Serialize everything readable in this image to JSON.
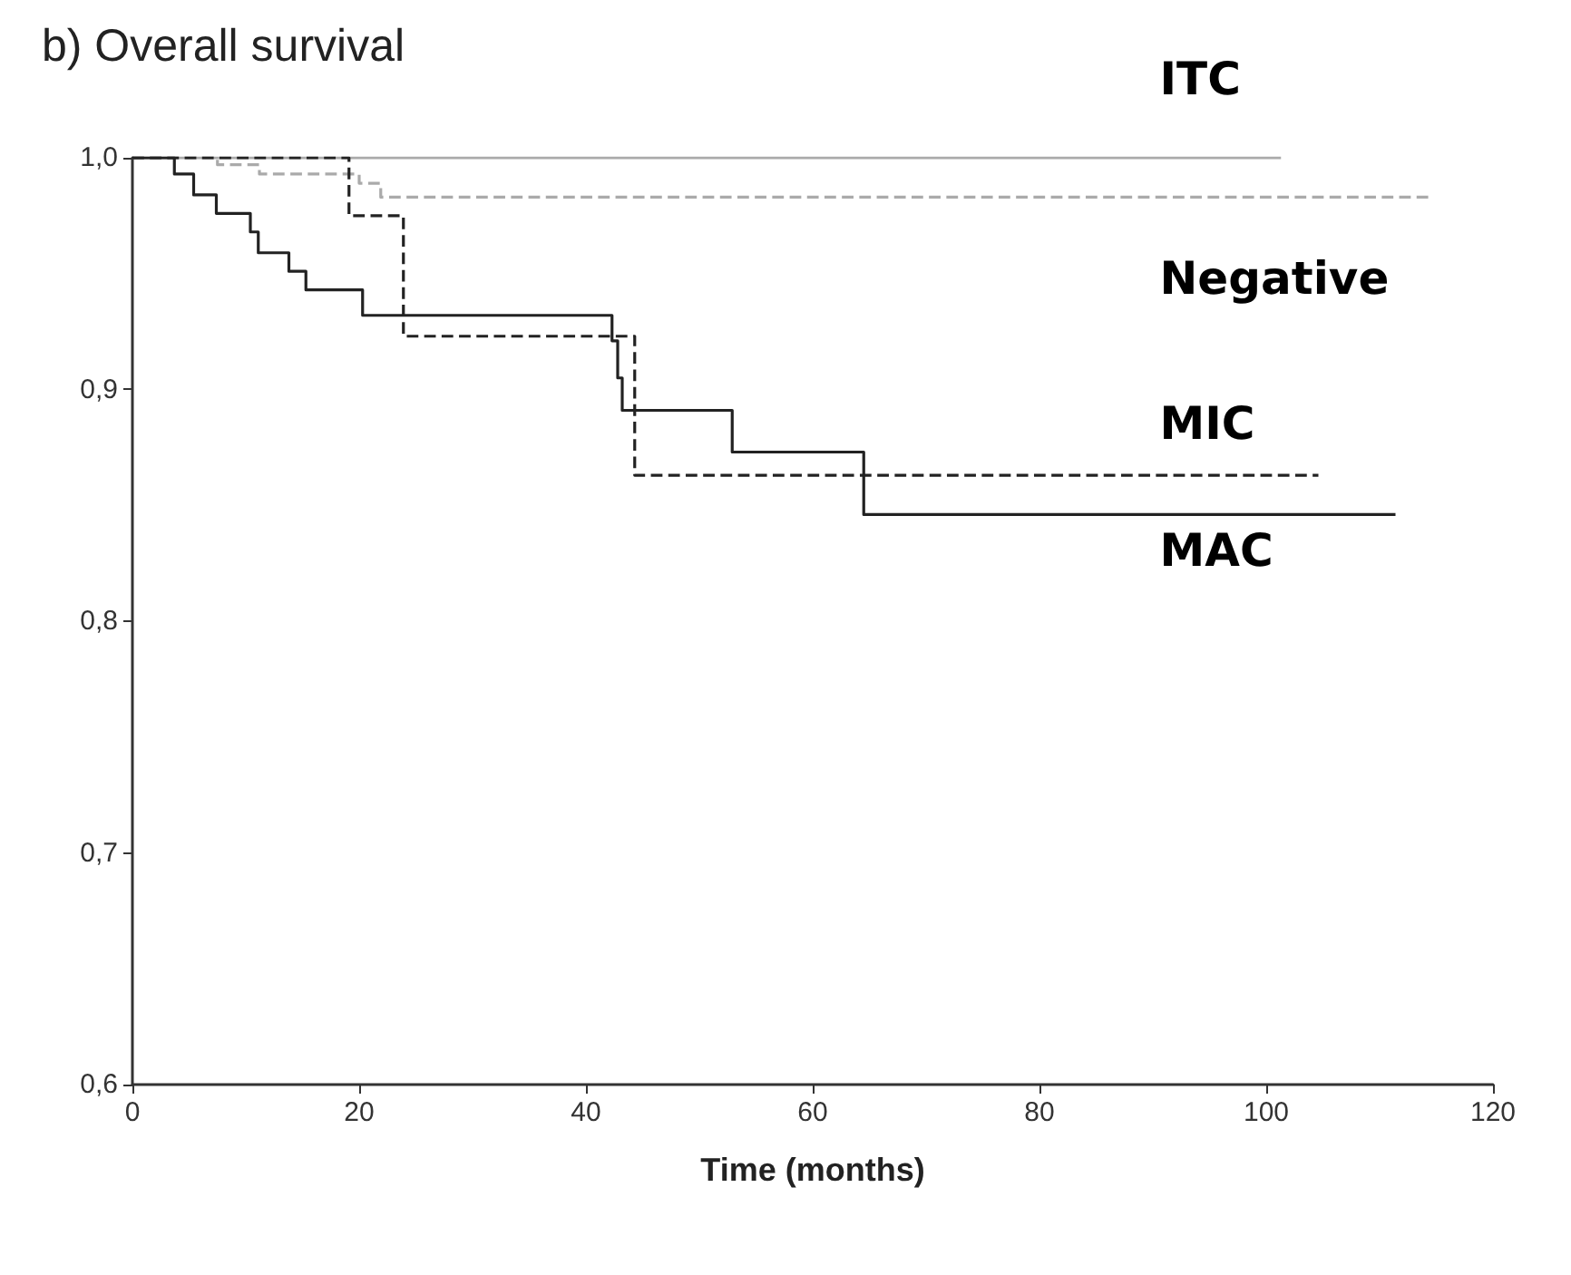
{
  "chart_data": {
    "type": "step",
    "title": "b) Overall survival",
    "xlabel": "Time (months)",
    "xlim": [
      0,
      120
    ],
    "xticks": [
      0,
      20,
      40,
      60,
      80,
      100,
      120
    ],
    "ylim": [
      0.6,
      1.0
    ],
    "yticks": [
      {
        "value": 0.6,
        "label": "0,6"
      },
      {
        "value": 0.7,
        "label": "0,7"
      },
      {
        "value": 0.8,
        "label": "0,8"
      },
      {
        "value": 0.9,
        "label": "0,9"
      },
      {
        "value": 1.0,
        "label": "1,0"
      }
    ],
    "grid": false,
    "legend": false,
    "marker": "none",
    "series": [
      {
        "name": "ITC",
        "color": "#aaaaaa",
        "line_style": "solid",
        "x": [
          0,
          101.3
        ],
        "values": [
          1.0,
          1.0
        ]
      },
      {
        "name": "Negative",
        "color": "#aaaaaa",
        "line_style": "dashed",
        "x": [
          0,
          7.5,
          11.2,
          20,
          21.9,
          114.7
        ],
        "values": [
          1.0,
          0.997,
          0.993,
          0.989,
          0.983,
          0.983
        ]
      },
      {
        "name": "MIC",
        "color": "#222222",
        "line_style": "dashed",
        "x": [
          0,
          19.1,
          23.9,
          44.3,
          104.6
        ],
        "values": [
          1.0,
          0.975,
          0.923,
          0.863,
          0.863
        ]
      },
      {
        "name": "MAC",
        "color": "#222222",
        "line_style": "solid",
        "x": [
          0,
          3.7,
          5.4,
          7.4,
          10.4,
          11.1,
          13.8,
          15.3,
          20.3,
          42.3,
          42.8,
          43.2,
          52.9,
          64.5,
          111.4
        ],
        "values": [
          1.0,
          0.993,
          0.984,
          0.976,
          0.968,
          0.959,
          0.951,
          0.943,
          0.932,
          0.921,
          0.905,
          0.891,
          0.873,
          0.846,
          0.846
        ]
      }
    ]
  }
}
